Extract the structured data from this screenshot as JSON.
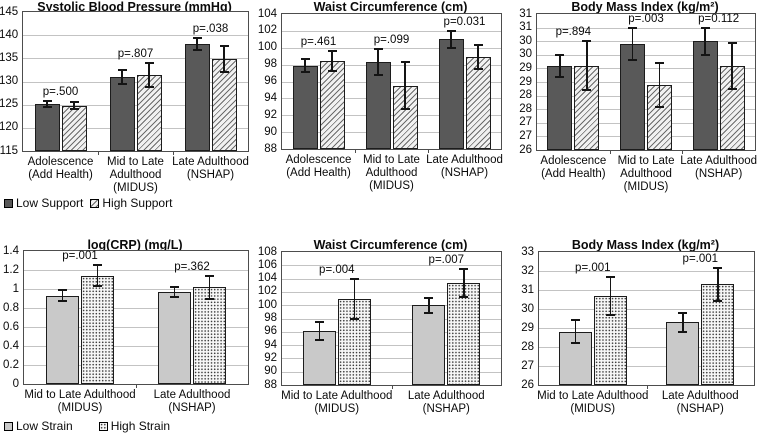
{
  "legends": {
    "support": {
      "items": [
        {
          "label": "Low Support",
          "style": "dark"
        },
        {
          "label": "High Support",
          "style": "hatch"
        }
      ]
    },
    "strain": {
      "items": [
        {
          "label": "Low Strain",
          "style": "light"
        },
        {
          "label": "High Strain",
          "style": "dots"
        }
      ]
    }
  },
  "colors": {
    "bar_dark": "#595959",
    "bar_light": "#c9c9c9",
    "hatch_line": "#6b6b6b",
    "hatch_bg": "#f1f1f1",
    "dots_fg": "#3d3d3d",
    "dots_bg": "#f7f7f7",
    "gridline": "#c3c3c3",
    "axis_border": "#4d4d4d",
    "error_bar": "#141414",
    "text": "#0a0a0a"
  },
  "chart_data": [
    {
      "type": "bar",
      "title": "Systolic Blood Pressure (mmHg)",
      "ylim": [
        115,
        145
      ],
      "tick_values": [
        145,
        140,
        135,
        130,
        125,
        120,
        115
      ],
      "tick_labels": [
        "145",
        "140",
        "135",
        "130",
        "125",
        "120",
        "115"
      ],
      "categories": [
        [
          "Adolescence",
          "(Add Health)"
        ],
        [
          "Mid to Late",
          "Adulthood",
          "(MIDUS)"
        ],
        [
          "Late Adulthood",
          "(NSHAP)"
        ]
      ],
      "series": [
        {
          "name": "Low Support",
          "style": "dark",
          "values": [
            125.2,
            131.0,
            138.1
          ],
          "errors": [
            0.7,
            1.6,
            1.2
          ]
        },
        {
          "name": "High Support",
          "style": "hatch",
          "values": [
            124.8,
            131.4,
            134.9
          ],
          "errors": [
            0.7,
            2.5,
            2.8
          ]
        }
      ],
      "p_values": [
        "p=.500",
        "p=.807",
        "p=.038"
      ],
      "legend": "support",
      "grid": true,
      "legend_position": "below-left"
    },
    {
      "type": "bar",
      "title": "Waist Circumference (cm)",
      "ylim": [
        88,
        104
      ],
      "tick_values": [
        104,
        102,
        100,
        98,
        96,
        94,
        92,
        90,
        88
      ],
      "tick_labels": [
        "104",
        "102",
        "100",
        "98",
        "96",
        "94",
        "92",
        "90",
        "88"
      ],
      "categories": [
        [
          "Adolescence",
          "(Add Health)"
        ],
        [
          "Mid to Late",
          "Adulthood",
          "(MIDUS)"
        ],
        [
          "Late Adulthood",
          "(NSHAP)"
        ]
      ],
      "series": [
        {
          "name": "Low Support",
          "style": "dark",
          "values": [
            97.9,
            98.3,
            101.0
          ],
          "errors": [
            0.8,
            1.5,
            1.0
          ]
        },
        {
          "name": "High Support",
          "style": "hatch",
          "values": [
            98.4,
            95.5,
            98.9
          ],
          "errors": [
            1.2,
            2.8,
            1.4
          ]
        }
      ],
      "p_values": [
        "p=.461",
        "p=.099",
        "p=0.031"
      ],
      "legend": "support",
      "grid": true,
      "legend_position": "none"
    },
    {
      "type": "bar",
      "title": "Body Mass Index (kg/m²)",
      "ylim": [
        26,
        31
      ],
      "tick_values": [
        31,
        30.5,
        30,
        29.5,
        29,
        28.5,
        28,
        27.5,
        27,
        26.5,
        26
      ],
      "tick_labels": [
        "31",
        "31",
        "30",
        "30",
        "29",
        "29",
        "28",
        "28",
        "27",
        "27",
        "26"
      ],
      "categories": [
        [
          "Adolescence",
          "(Add Health)"
        ],
        [
          "Mid to Late",
          "Adulthood",
          "(MIDUS)"
        ],
        [
          "Late Adulthood",
          "(NSHAP)"
        ]
      ],
      "series": [
        {
          "name": "Low Support",
          "style": "dark",
          "values": [
            29.1,
            29.9,
            30.0
          ],
          "errors": [
            0.4,
            0.6,
            0.5
          ]
        },
        {
          "name": "High Support",
          "style": "hatch",
          "values": [
            29.1,
            28.4,
            29.1
          ],
          "errors": [
            0.9,
            0.8,
            0.85
          ]
        }
      ],
      "p_values": [
        "p=.894",
        "p=.003",
        "p=0.112"
      ],
      "legend": "support",
      "grid": true,
      "legend_position": "none"
    },
    {
      "type": "bar",
      "title": "log(CRP) (mg/L)",
      "ylim": [
        0,
        1.4
      ],
      "tick_values": [
        1.4,
        1.2,
        1.0,
        0.8,
        0.6,
        0.4,
        0.2,
        0
      ],
      "tick_labels": [
        "1.4",
        "1.2",
        "1",
        "0.8",
        "0.6",
        "0.4",
        "0.2",
        "0"
      ],
      "categories": [
        [
          "Mid to Late Adulthood",
          "(MIDUS)"
        ],
        [
          "Late Adulthood",
          "(NSHAP)"
        ]
      ],
      "series": [
        {
          "name": "Low Strain",
          "style": "light",
          "values": [
            0.93,
            0.97
          ],
          "errors": [
            0.06,
            0.05
          ]
        },
        {
          "name": "High Strain",
          "style": "dots",
          "values": [
            1.14,
            1.02
          ],
          "errors": [
            0.11,
            0.12
          ]
        }
      ],
      "p_values": [
        "p=.001",
        "p=.362"
      ],
      "legend": "strain",
      "grid": true,
      "legend_position": "below-left"
    },
    {
      "type": "bar",
      "title": "Waist Circumference (cm)",
      "ylim": [
        88,
        108
      ],
      "tick_values": [
        108,
        106,
        104,
        102,
        100,
        98,
        96,
        94,
        92,
        90,
        88
      ],
      "tick_labels": [
        "108",
        "106",
        "104",
        "102",
        "100",
        "98",
        "96",
        "94",
        "92",
        "90",
        "88"
      ],
      "categories": [
        [
          "Mid to Late Adulthood",
          "(MIDUS)"
        ],
        [
          "Late Adulthood",
          "(NSHAP)"
        ]
      ],
      "series": [
        {
          "name": "Low Strain",
          "style": "light",
          "values": [
            96.1,
            100.0
          ],
          "errors": [
            1.35,
            1.1
          ]
        },
        {
          "name": "High Strain",
          "style": "dots",
          "values": [
            101.0,
            103.3
          ],
          "errors": [
            3.0,
            2.1
          ]
        }
      ],
      "p_values": [
        "p=.004",
        "p=.007"
      ],
      "legend": "strain",
      "grid": true,
      "legend_position": "none"
    },
    {
      "type": "bar",
      "title": "Body Mass Index (kg/m²)",
      "ylim": [
        26,
        33
      ],
      "tick_values": [
        33,
        32,
        31,
        30,
        29,
        28,
        27,
        26
      ],
      "tick_labels": [
        "33",
        "32",
        "31",
        "30",
        "29",
        "28",
        "27",
        "26"
      ],
      "categories": [
        [
          "Mid to Late Adulthood",
          "(MIDUS)"
        ],
        [
          "Late Adulthood",
          "(NSHAP)"
        ]
      ],
      "series": [
        {
          "name": "Low Strain",
          "style": "light",
          "values": [
            28.8,
            29.3
          ],
          "errors": [
            0.6,
            0.5
          ]
        },
        {
          "name": "High Strain",
          "style": "dots",
          "values": [
            30.7,
            31.3
          ],
          "errors": [
            1.0,
            0.85
          ]
        }
      ],
      "p_values": [
        "p=.001",
        "p=.001"
      ],
      "legend": "strain",
      "grid": true,
      "legend_position": "none"
    }
  ]
}
